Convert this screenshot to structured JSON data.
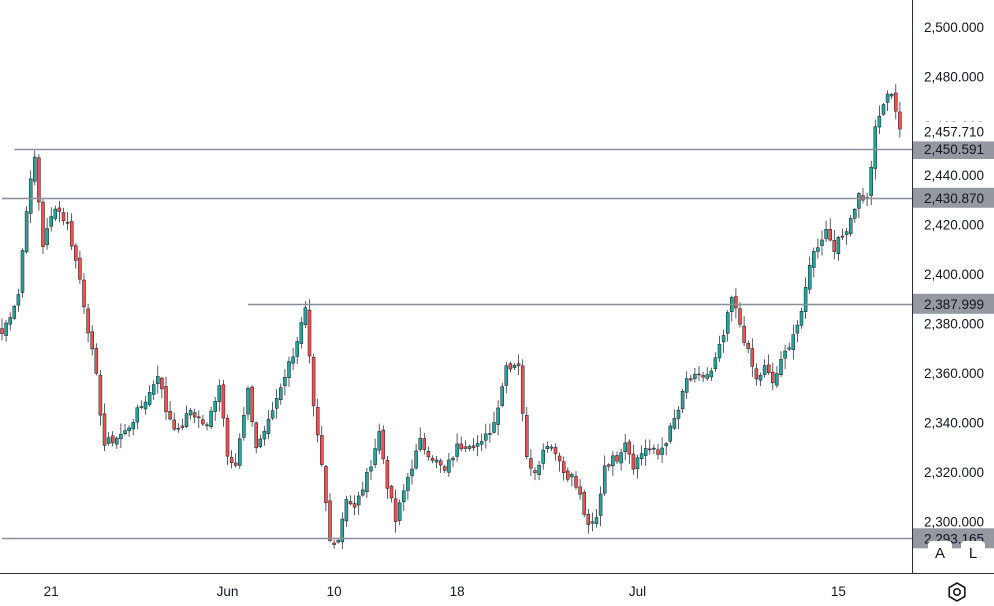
{
  "chart_data": {
    "type": "candlestick",
    "price_axis": {
      "ylim": [
        2286,
        2506
      ],
      "ticks": [
        {
          "value": 2500,
          "label": "2,500.000"
        },
        {
          "value": 2480,
          "label": "2,480.000"
        },
        {
          "value": 2460,
          "label": "2,460.000"
        },
        {
          "value": 2440,
          "label": "2,440.000"
        },
        {
          "value": 2420,
          "label": "2,420.000"
        },
        {
          "value": 2400,
          "label": "2,400.000"
        },
        {
          "value": 2380,
          "label": "2,380.000"
        },
        {
          "value": 2360,
          "label": "2,360.000"
        },
        {
          "value": 2340,
          "label": "2,340.000"
        },
        {
          "value": 2320,
          "label": "2,320.000"
        },
        {
          "value": 2300,
          "label": "2,300.000"
        }
      ]
    },
    "time_axis": {
      "range_bars": [
        0,
        219
      ],
      "ticks": [
        {
          "bar": 12,
          "label": "21"
        },
        {
          "bar": 55,
          "label": "Jun"
        },
        {
          "bar": 81,
          "label": "10"
        },
        {
          "bar": 111,
          "label": "18"
        },
        {
          "bar": 155,
          "label": "Jul"
        },
        {
          "bar": 204,
          "label": "15"
        }
      ]
    },
    "last_price": {
      "value": 2457.71,
      "label": "2,457.710"
    },
    "levels": [
      {
        "value": 2450.591,
        "label": "2,450.591",
        "start_bar": 3
      },
      {
        "value": 2430.87,
        "label": "2,430.870",
        "start_bar": 0
      },
      {
        "value": 2387.999,
        "label": "2,387.999",
        "start_bar": 60
      },
      {
        "value": 2293.165,
        "label": "2,293.165",
        "start_bar": 0
      }
    ],
    "anchors": [
      [
        0,
        2376
      ],
      [
        4,
        2392
      ],
      [
        6,
        2427
      ],
      [
        8,
        2447
      ],
      [
        10,
        2412
      ],
      [
        13,
        2428
      ],
      [
        16,
        2420
      ],
      [
        19,
        2398
      ],
      [
        21,
        2378
      ],
      [
        23,
        2358
      ],
      [
        25,
        2331
      ],
      [
        27,
        2333
      ],
      [
        30,
        2336
      ],
      [
        33,
        2344
      ],
      [
        36,
        2352
      ],
      [
        38,
        2360
      ],
      [
        40,
        2345
      ],
      [
        43,
        2336
      ],
      [
        46,
        2345
      ],
      [
        50,
        2338
      ],
      [
        53,
        2356
      ],
      [
        55,
        2328
      ],
      [
        57,
        2323
      ],
      [
        60,
        2352
      ],
      [
        62,
        2330
      ],
      [
        65,
        2340
      ],
      [
        68,
        2355
      ],
      [
        71,
        2368
      ],
      [
        74,
        2385
      ],
      [
        76,
        2345
      ],
      [
        78,
        2322
      ],
      [
        80,
        2292
      ],
      [
        82,
        2293
      ],
      [
        84,
        2310
      ],
      [
        86,
        2305
      ],
      [
        89,
        2318
      ],
      [
        92,
        2336
      ],
      [
        94,
        2315
      ],
      [
        96,
        2300
      ],
      [
        99,
        2318
      ],
      [
        102,
        2332
      ],
      [
        105,
        2326
      ],
      [
        108,
        2320
      ],
      [
        111,
        2330
      ],
      [
        114,
        2332
      ],
      [
        117,
        2331
      ],
      [
        120,
        2340
      ],
      [
        123,
        2363
      ],
      [
        126,
        2364
      ],
      [
        128,
        2325
      ],
      [
        130,
        2321
      ],
      [
        133,
        2332
      ],
      [
        135,
        2329
      ],
      [
        137,
        2320
      ],
      [
        139,
        2318
      ],
      [
        141,
        2310
      ],
      [
        143,
        2297
      ],
      [
        145,
        2301
      ],
      [
        147,
        2323
      ],
      [
        150,
        2326
      ],
      [
        152,
        2333
      ],
      [
        154,
        2323
      ],
      [
        157,
        2330
      ],
      [
        160,
        2327
      ],
      [
        162,
        2333
      ],
      [
        165,
        2345
      ],
      [
        167,
        2357
      ],
      [
        170,
        2358
      ],
      [
        173,
        2360
      ],
      [
        176,
        2375
      ],
      [
        178,
        2390
      ],
      [
        180,
        2380
      ],
      [
        182,
        2368
      ],
      [
        184,
        2357
      ],
      [
        186,
        2362
      ],
      [
        188,
        2356
      ],
      [
        190,
        2364
      ],
      [
        193,
        2376
      ],
      [
        195,
        2383
      ],
      [
        197,
        2405
      ],
      [
        199,
        2412
      ],
      [
        201,
        2418
      ],
      [
        203,
        2411
      ],
      [
        205,
        2415
      ],
      [
        207,
        2423
      ],
      [
        209,
        2432
      ],
      [
        211,
        2430
      ],
      [
        213,
        2458
      ],
      [
        215,
        2469
      ],
      [
        217,
        2474
      ],
      [
        219,
        2459
      ]
    ],
    "colors": {
      "up": "#26a69a",
      "down": "#ef5350"
    }
  },
  "axis_buttons": {
    "auto": "A",
    "log": "L"
  },
  "settings_icon": "gear-icon"
}
